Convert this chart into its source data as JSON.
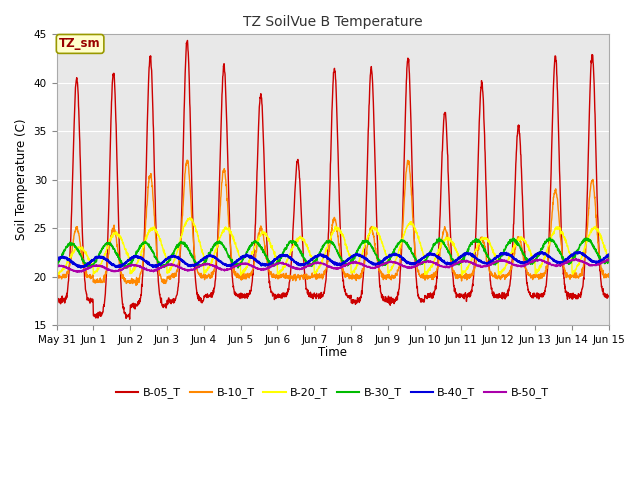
{
  "title": "TZ SoilVue B Temperature",
  "ylabel": "Soil Temperature (C)",
  "xlabel": "Time",
  "annotation": "TZ_sm",
  "ylim": [
    15,
    45
  ],
  "yticks": [
    15,
    20,
    25,
    30,
    35,
    40,
    45
  ],
  "xtick_labels": [
    "May 31",
    "Jun 1",
    "Jun 2",
    "Jun 3",
    "Jun 4",
    "Jun 5",
    "Jun 6",
    "Jun 7",
    "Jun 8",
    "Jun 9",
    "Jun 10",
    "Jun 11",
    "Jun 12",
    "Jun 13",
    "Jun 14",
    "Jun 15"
  ],
  "outer_bg": "#ffffff",
  "plot_bg": "#e8e8e8",
  "grid_color": "#ffffff",
  "series_order": [
    "B-05_T",
    "B-10_T",
    "B-20_T",
    "B-30_T",
    "B-40_T",
    "B-50_T"
  ],
  "series": {
    "B-05_T": {
      "color": "#cc0000",
      "lw": 1.0
    },
    "B-10_T": {
      "color": "#ff8800",
      "lw": 1.0
    },
    "B-20_T": {
      "color": "#ffff00",
      "lw": 1.0
    },
    "B-30_T": {
      "color": "#00bb00",
      "lw": 1.2
    },
    "B-40_T": {
      "color": "#0000dd",
      "lw": 1.5
    },
    "B-50_T": {
      "color": "#aa00aa",
      "lw": 1.2
    }
  },
  "b05_peaks": [
    39,
    40.5,
    41,
    42.7,
    44.3,
    41.7,
    38.8,
    32,
    41.5,
    41.5,
    42.5,
    37,
    40,
    35.5,
    42.7,
    43
  ],
  "b05_mins": [
    17.5,
    16,
    17,
    17.5,
    18,
    18,
    18,
    18,
    17.5,
    17.5,
    18,
    18,
    18,
    18,
    18,
    19
  ],
  "b10_peaks": [
    24,
    25,
    25,
    30.5,
    32,
    31,
    25,
    20,
    26,
    25,
    32,
    25,
    24,
    24,
    29,
    30
  ],
  "b10_mins": [
    20,
    19.5,
    19.5,
    20,
    20,
    20,
    20,
    20,
    20,
    20,
    20,
    20,
    20,
    20,
    20,
    20
  ],
  "b20_peaks": [
    23,
    23,
    24.5,
    25,
    26,
    25,
    24.5,
    24,
    25,
    25,
    25.5,
    24,
    24,
    24,
    25,
    25
  ],
  "b20_mins": [
    20,
    20,
    20,
    20,
    20,
    20,
    20,
    20,
    20,
    20,
    20,
    20,
    20,
    20,
    20,
    20
  ],
  "b30_base": 22.2,
  "b30_amp": 1.2,
  "b40_base": 21.5,
  "b40_amp": 0.5,
  "b50_base": 20.8,
  "b50_amp": 0.3
}
